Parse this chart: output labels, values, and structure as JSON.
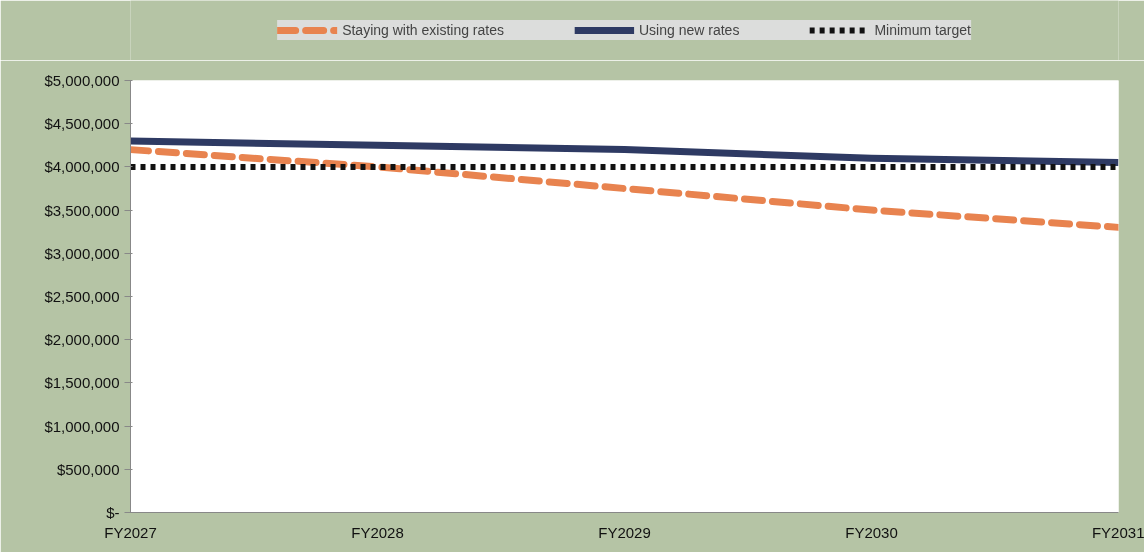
{
  "chart_data": {
    "type": "line",
    "categories": [
      "FY2027",
      "FY2028",
      "FY2029",
      "FY2030",
      "FY2031"
    ],
    "series": [
      {
        "name": "Staying with existing rates",
        "color": "#e8834f",
        "line_style": "dashed",
        "values": [
          4200000,
          4000000,
          3750000,
          3500000,
          3300000
        ]
      },
      {
        "name": "Using new rates",
        "color": "#2e3a63",
        "line_style": "solid",
        "values": [
          4300000,
          4250000,
          4200000,
          4100000,
          4050000
        ]
      },
      {
        "name": "Minimum target",
        "color": "#111111",
        "line_style": "dotted",
        "values": [
          4000000,
          4000000,
          4000000,
          4000000,
          4000000
        ]
      }
    ],
    "ylim": [
      0,
      5000000
    ],
    "yticks": [
      {
        "value": 0,
        "label": "$-"
      },
      {
        "value": 500000,
        "label": "$500,000"
      },
      {
        "value": 1000000,
        "label": "$1,000,000"
      },
      {
        "value": 1500000,
        "label": "$1,500,000"
      },
      {
        "value": 2000000,
        "label": "$2,000,000"
      },
      {
        "value": 2500000,
        "label": "$2,500,000"
      },
      {
        "value": 3000000,
        "label": "$3,000,000"
      },
      {
        "value": 3500000,
        "label": "$3,500,000"
      },
      {
        "value": 4000000,
        "label": "$4,000,000"
      },
      {
        "value": 4500000,
        "label": "$4,500,000"
      },
      {
        "value": 5000000,
        "label": "$5,000,000"
      }
    ],
    "grid": false,
    "legend": "top"
  }
}
